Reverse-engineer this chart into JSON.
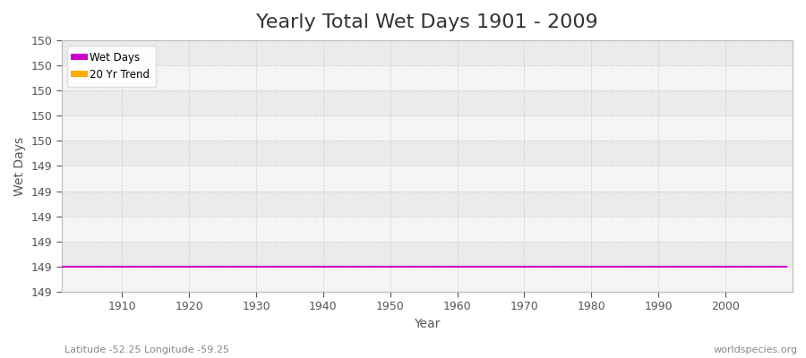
{
  "title": "Yearly Total Wet Days 1901 - 2009",
  "xlabel": "Year",
  "ylabel": "Wet Days",
  "subtitle": "Latitude -52.25 Longitude -59.25",
  "watermark": "worldspecies.org",
  "year_start": 1901,
  "year_end": 2009,
  "wet_days_value": 149,
  "trend_value": 149,
  "wet_days_color": "#cc00cc",
  "trend_color": "#ffaa00",
  "fig_background_color": "#ffffff",
  "plot_background_color": "#f0f0f0",
  "grid_color": "#cccccc",
  "legend_wet_days": "Wet Days",
  "legend_trend": "20 Yr Trend",
  "title_fontsize": 16,
  "axis_label_fontsize": 10,
  "tick_label_color": "#555555",
  "axis_label_color": "#555555",
  "title_color": "#333333",
  "ylim_min": 148.875,
  "ylim_max": 150.125,
  "n_yticks": 11,
  "xlim_min": 1901,
  "xlim_max": 2010
}
